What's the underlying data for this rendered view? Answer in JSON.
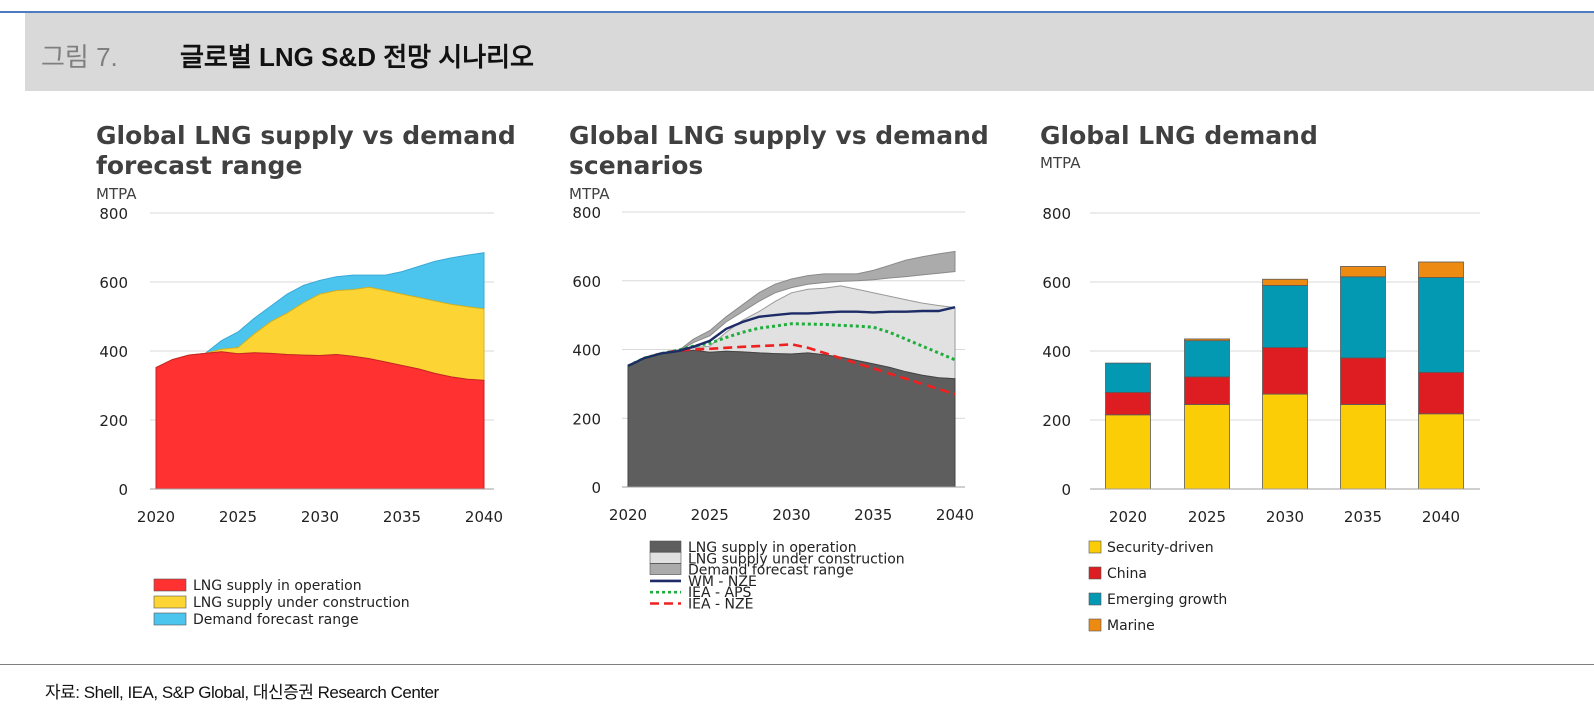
{
  "header": {
    "figure_label": "그림 7.",
    "title": "글로벌 LNG S&D 전망 시나리오"
  },
  "source": "자료: Shell, IEA, S&P Global, 대신증권 Research Center",
  "colors": {
    "red": "#ff3131",
    "yellow": "#fcd535",
    "cyan": "#4cc5ee",
    "dark": "#5e5e5e",
    "light": "#e1e1e1",
    "mid": "#ababab",
    "navy": "#1d2b66",
    "green": "#1eae3c",
    "redline": "#ee2020",
    "sec": "#fbcd07",
    "china": "#dd1d21",
    "emerg": "#0399b2",
    "marine": "#ed8a11"
  },
  "chart_data": [
    {
      "type": "area",
      "title_line1": "Global LNG supply vs demand",
      "title_line2": "forecast range",
      "unit": "MTPA",
      "ylim": [
        0,
        800
      ],
      "yticks": [
        "0",
        "200",
        "400",
        "600",
        "800"
      ],
      "xlim": [
        2020,
        2040
      ],
      "xticks": [
        "2020",
        "2025",
        "2030",
        "2035",
        "2040"
      ],
      "x": [
        2020,
        2021,
        2022,
        2023,
        2024,
        2025,
        2026,
        2027,
        2028,
        2029,
        2030,
        2031,
        2032,
        2033,
        2034,
        2035,
        2036,
        2037,
        2038,
        2039,
        2040
      ],
      "operation": [
        352,
        375,
        388,
        393,
        398,
        392,
        395,
        393,
        390,
        388,
        387,
        390,
        385,
        378,
        368,
        358,
        348,
        335,
        325,
        318,
        315
      ],
      "construction": [
        352,
        375,
        388,
        393,
        405,
        410,
        450,
        485,
        510,
        540,
        565,
        575,
        578,
        585,
        575,
        565,
        555,
        545,
        535,
        528,
        522
      ],
      "demand_top": [
        352,
        375,
        388,
        393,
        430,
        455,
        495,
        530,
        565,
        590,
        605,
        615,
        620,
        620,
        620,
        630,
        645,
        660,
        670,
        678,
        685
      ],
      "legend": [
        "LNG supply in operation",
        "LNG supply under construction",
        "Demand forecast range"
      ]
    },
    {
      "type": "line",
      "title_line1": "Global LNG supply vs demand",
      "title_line2": "scenarios",
      "unit": "MTPA",
      "ylim": [
        0,
        800
      ],
      "yticks": [
        "0",
        "200",
        "400",
        "600",
        "800"
      ],
      "xlim": [
        2020,
        2040
      ],
      "xticks": [
        "2020",
        "2025",
        "2030",
        "2035",
        "2040"
      ],
      "x": [
        2020,
        2021,
        2022,
        2023,
        2024,
        2025,
        2026,
        2027,
        2028,
        2029,
        2030,
        2031,
        2032,
        2033,
        2034,
        2035,
        2036,
        2037,
        2038,
        2039,
        2040
      ],
      "operation": [
        352,
        375,
        388,
        393,
        398,
        392,
        395,
        393,
        390,
        388,
        387,
        390,
        385,
        378,
        368,
        358,
        348,
        335,
        325,
        318,
        315
      ],
      "construction": [
        352,
        375,
        388,
        393,
        405,
        410,
        450,
        485,
        510,
        540,
        565,
        575,
        578,
        585,
        575,
        565,
        555,
        545,
        535,
        528,
        522
      ],
      "demand_low": [
        352,
        375,
        388,
        393,
        420,
        440,
        480,
        510,
        540,
        565,
        580,
        590,
        595,
        598,
        600,
        603,
        608,
        612,
        617,
        622,
        627
      ],
      "demand_top": [
        352,
        375,
        388,
        393,
        430,
        455,
        495,
        530,
        565,
        590,
        605,
        615,
        620,
        620,
        620,
        630,
        645,
        660,
        670,
        678,
        685
      ],
      "wm_nze": [
        352,
        375,
        388,
        395,
        408,
        425,
        460,
        480,
        495,
        500,
        505,
        505,
        508,
        510,
        510,
        508,
        510,
        510,
        512,
        512,
        523
      ],
      "iea_aps": [
        352,
        375,
        388,
        397,
        410,
        418,
        435,
        450,
        462,
        468,
        475,
        474,
        473,
        470,
        468,
        465,
        450,
        430,
        410,
        390,
        370
      ],
      "iea_nze": [
        352,
        375,
        388,
        397,
        400,
        402,
        405,
        408,
        410,
        412,
        415,
        405,
        390,
        375,
        360,
        345,
        330,
        315,
        300,
        285,
        270
      ],
      "legend": [
        "LNG supply in operation",
        "LNG supply under construction",
        "Demand forecast range",
        "WM - NZE",
        "IEA - APS",
        "IEA - NZE"
      ]
    },
    {
      "type": "bar",
      "stacked": true,
      "title_line1": "Global LNG demand",
      "unit": "MTPA",
      "ylim": [
        0,
        800
      ],
      "yticks": [
        "0",
        "200",
        "400",
        "600",
        "800"
      ],
      "categories": [
        "2020",
        "2025",
        "2030",
        "2035",
        "2040"
      ],
      "series": [
        {
          "name": "Security-driven",
          "values": [
            215,
            245,
            275,
            245,
            218
          ]
        },
        {
          "name": "China",
          "values": [
            65,
            80,
            135,
            135,
            120
          ]
        },
        {
          "name": "Emerging growth",
          "values": [
            85,
            105,
            180,
            235,
            275
          ]
        },
        {
          "name": "Marine",
          "values": [
            0,
            5,
            18,
            30,
            45
          ]
        }
      ]
    }
  ]
}
